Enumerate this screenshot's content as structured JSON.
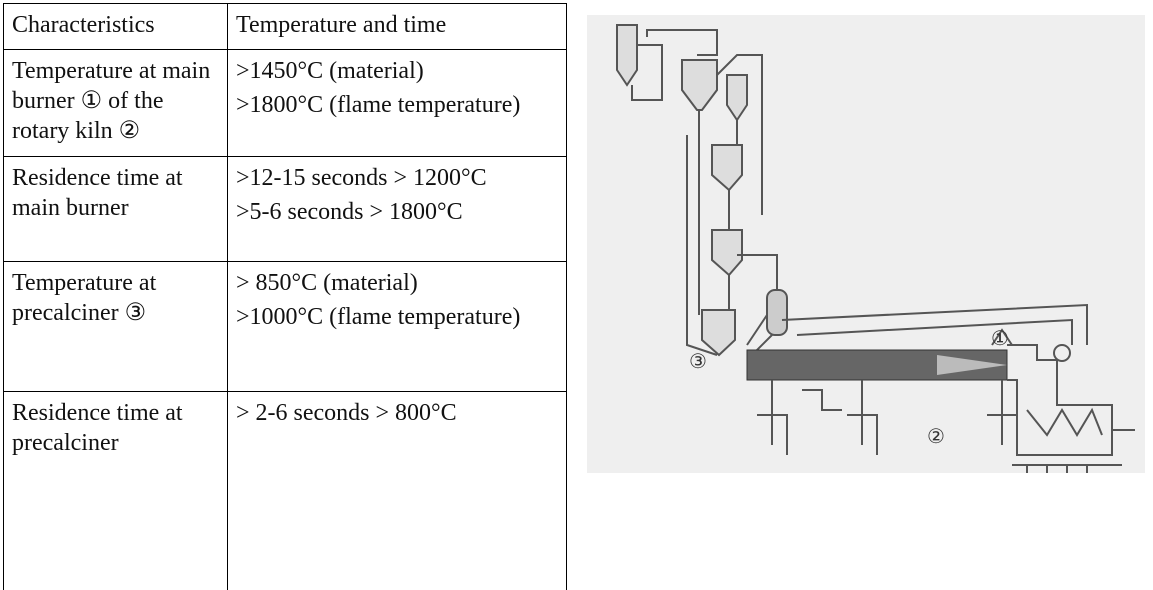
{
  "table": {
    "header": [
      "Characteristics",
      "Temperature and time"
    ],
    "rows": [
      [
        "Temperature at main burner ① of the rotary kiln ②",
        [
          ">1450°C (material)",
          ">1800°C (flame temperature)"
        ]
      ],
      [
        "Residence time at main burner",
        [
          ">12-15 seconds > 1200°C",
          ">5-6 seconds > 1800°C"
        ]
      ],
      [
        "Temperature at precalciner ③",
        [
          "> 850°C (material)",
          ">1000°C (flame temperature)"
        ]
      ],
      [
        "Residence time at precalciner",
        [
          "> 2-6 seconds > 800°C"
        ]
      ]
    ]
  },
  "diagram": {
    "labels": [
      "③",
      "①",
      "②"
    ]
  }
}
